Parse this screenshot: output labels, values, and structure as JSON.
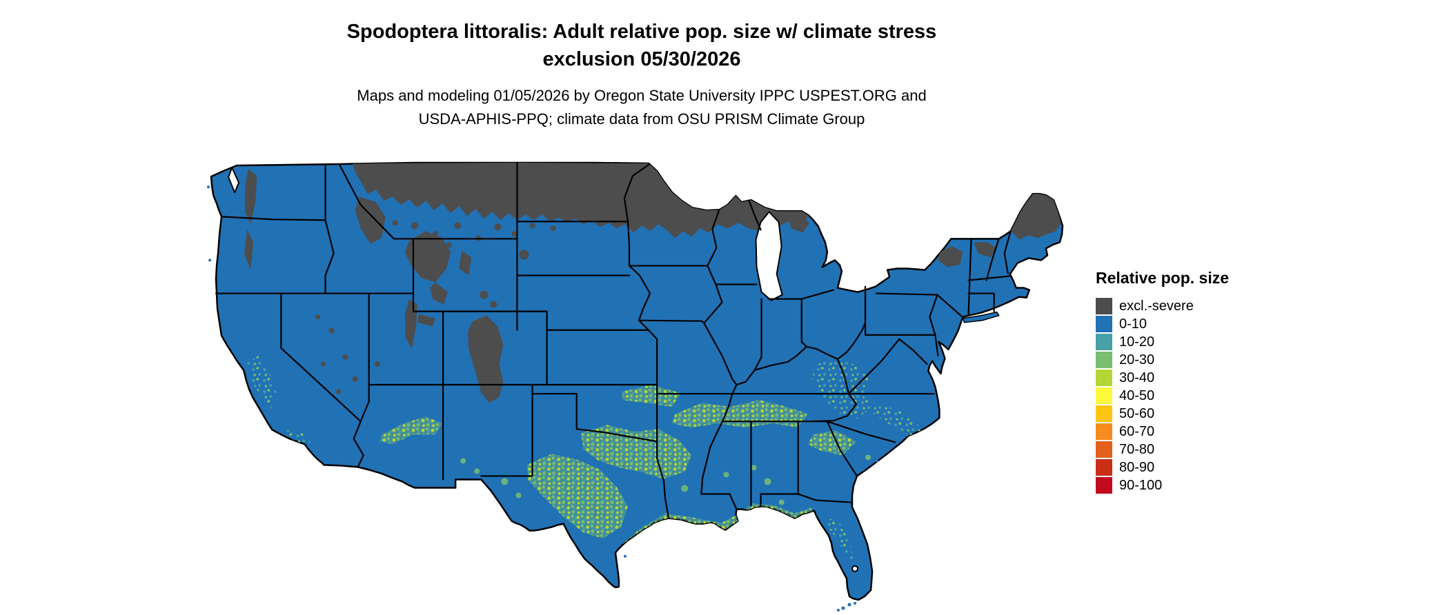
{
  "title": {
    "line1": "Spodoptera littoralis: Adult relative pop. size w/ climate stress",
    "line2": "exclusion 05/30/2026"
  },
  "subtitle": {
    "line1": "Maps and modeling 01/05/2026 by Oregon State University IPPC USPEST.ORG and",
    "line2": "USDA-APHIS-PPQ; climate data from OSU PRISM Climate Group"
  },
  "legend": {
    "title": "Relative pop. size",
    "items": [
      {
        "key": "excl",
        "label": "excl.-severe",
        "color": "#4d4d4d"
      },
      {
        "key": "b0",
        "label": "0-10",
        "color": "#2171b5"
      },
      {
        "key": "b10",
        "label": "10-20",
        "color": "#47a0a5"
      },
      {
        "key": "b20",
        "label": "20-30",
        "color": "#78bd72"
      },
      {
        "key": "b30",
        "label": "30-40",
        "color": "#b5d637"
      },
      {
        "key": "b40",
        "label": "40-50",
        "color": "#fcf93c"
      },
      {
        "key": "b50",
        "label": "50-60",
        "color": "#fdc511"
      },
      {
        "key": "b60",
        "label": "60-70",
        "color": "#f68b1f"
      },
      {
        "key": "b70",
        "label": "70-80",
        "color": "#e25f1c"
      },
      {
        "key": "b80",
        "label": "80-90",
        "color": "#c92f17"
      },
      {
        "key": "b90",
        "label": "90-100",
        "color": "#c20a1f"
      }
    ]
  },
  "map": {
    "water_color": "#ffffff",
    "boundary_color": "#000000",
    "land_default_color": "#2171b5",
    "excluded_color": "#4d4d4d"
  }
}
